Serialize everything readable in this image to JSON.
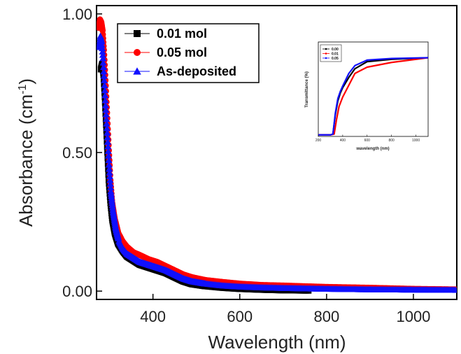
{
  "chart_data": [
    {
      "type": "scatter",
      "title": "",
      "xlabel": "Wavelength (nm)",
      "ylabel_main": "Absorbance (cm",
      "ylabel_sup": "-1",
      "ylabel_close": ")",
      "xlim": [
        270,
        1100
      ],
      "ylim": [
        -0.03,
        1.03
      ],
      "xticks": [
        400,
        600,
        800,
        1000
      ],
      "xtick_labels": [
        "400",
        "600",
        "800",
        "1000"
      ],
      "yticks": [
        0.0,
        0.5,
        1.0
      ],
      "ytick_labels": [
        "0.00",
        "0.50",
        "1.00"
      ],
      "grid": false,
      "legend_position": "top-left",
      "series": [
        {
          "name": "0.01 mol",
          "color": "#000000",
          "marker": "square",
          "x": [
            280,
            283,
            286,
            289,
            292,
            295,
            298,
            302,
            306,
            312,
            320,
            330,
            340,
            355,
            370,
            390,
            410,
            430,
            450,
            470,
            490,
            520,
            560,
            600,
            650,
            700,
            760
          ],
          "y": [
            0.8,
            0.82,
            0.78,
            0.7,
            0.6,
            0.5,
            0.4,
            0.32,
            0.26,
            0.21,
            0.17,
            0.145,
            0.125,
            0.11,
            0.095,
            0.085,
            0.075,
            0.065,
            0.05,
            0.035,
            0.025,
            0.018,
            0.012,
            0.008,
            0.005,
            0.003,
            0.002
          ]
        },
        {
          "name": "0.05 mol",
          "color": "#ff0000",
          "marker": "circle",
          "x": [
            275,
            278,
            281,
            284,
            287,
            290,
            294,
            298,
            302,
            306,
            312,
            320,
            330,
            340,
            355,
            370,
            390,
            410,
            430,
            450,
            470,
            490,
            520,
            560,
            600,
            650,
            700,
            800,
            900,
            1000,
            1100
          ],
          "y": [
            0.95,
            0.98,
            0.97,
            0.94,
            0.87,
            0.78,
            0.65,
            0.52,
            0.4,
            0.32,
            0.26,
            0.21,
            0.18,
            0.16,
            0.14,
            0.13,
            0.115,
            0.105,
            0.09,
            0.075,
            0.06,
            0.05,
            0.04,
            0.033,
            0.027,
            0.022,
            0.02,
            0.015,
            0.012,
            0.008,
            0.006
          ]
        },
        {
          "name": "As-deposited",
          "color": "#1010ff",
          "marker": "triangle",
          "x": [
            276,
            279,
            282,
            285,
            288,
            291,
            295,
            299,
            303,
            308,
            314,
            322,
            330,
            340,
            355,
            370,
            390,
            410,
            430,
            450,
            470,
            490,
            520,
            560,
            600,
            650,
            700,
            800,
            900,
            1000,
            1100
          ],
          "y": [
            0.88,
            0.92,
            0.9,
            0.84,
            0.76,
            0.67,
            0.56,
            0.45,
            0.36,
            0.29,
            0.23,
            0.18,
            0.155,
            0.135,
            0.12,
            0.105,
            0.095,
            0.085,
            0.075,
            0.06,
            0.045,
            0.035,
            0.027,
            0.02,
            0.016,
            0.013,
            0.011,
            0.008,
            0.006,
            0.005,
            0.004
          ]
        }
      ]
    },
    {
      "type": "line",
      "title": "",
      "xlabel": "wavelength (nm)",
      "ylabel": "Transmittance (%)",
      "xlim": [
        200,
        1100
      ],
      "ylim": [
        0,
        120
      ],
      "xticks": [
        200,
        400,
        600,
        800,
        1000
      ],
      "xtick_labels": [
        "200",
        "400",
        "600",
        "800",
        "1000"
      ],
      "grid": false,
      "legend_position": "top-left",
      "series": [
        {
          "name": "0.00",
          "color": "#000000",
          "x": [
            200,
            300,
            320,
            340,
            360,
            380,
            400,
            450,
            500,
            600,
            800,
            1100
          ],
          "y": [
            2,
            2,
            3,
            28,
            45,
            55,
            62,
            75,
            86,
            95,
            98,
            100
          ]
        },
        {
          "name": "0.01",
          "color": "#ff0000",
          "x": [
            200,
            300,
            330,
            350,
            370,
            400,
            450,
            500,
            600,
            800,
            1100
          ],
          "y": [
            2,
            2,
            3,
            22,
            38,
            50,
            65,
            80,
            88,
            94,
            100
          ]
        },
        {
          "name": "0.05",
          "color": "#1010ff",
          "x": [
            200,
            300,
            320,
            340,
            360,
            380,
            400,
            450,
            500,
            600,
            800,
            1100
          ],
          "y": [
            2,
            2,
            3,
            30,
            48,
            57,
            64,
            80,
            90,
            97,
            99,
            100
          ]
        }
      ]
    }
  ]
}
